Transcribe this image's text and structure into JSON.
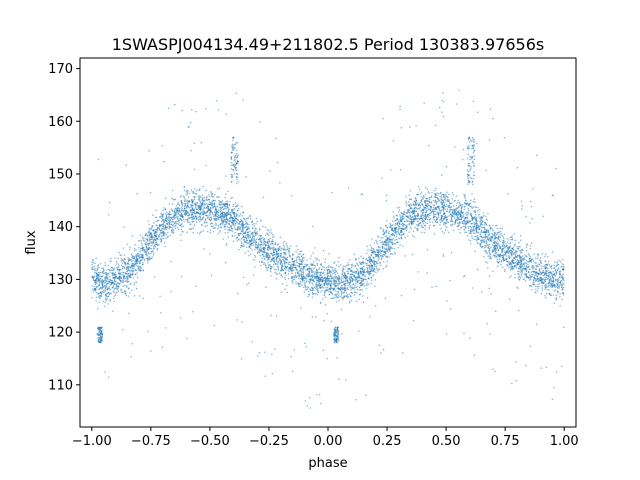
{
  "chart_data": {
    "type": "scatter",
    "title": "1SWASPJ004134.49+211802.5 Period 130383.97656s",
    "xlabel": "phase",
    "ylabel": "flux",
    "xlim": [
      -1.05,
      1.05
    ],
    "ylim": [
      102,
      172
    ],
    "x_ticks": [
      -1.0,
      -0.75,
      -0.5,
      -0.25,
      0.0,
      0.25,
      0.5,
      0.75,
      1.0
    ],
    "x_tick_labels": [
      "−1.00",
      "−0.75",
      "−0.50",
      "−0.25",
      "0.00",
      "0.25",
      "0.50",
      "0.75",
      "1.00"
    ],
    "y_ticks": [
      110,
      120,
      130,
      140,
      150,
      160,
      170
    ],
    "y_tick_labels": [
      "110",
      "120",
      "130",
      "140",
      "150",
      "160",
      "170"
    ],
    "grid": false,
    "point_color": "#1f77b4",
    "curve": {
      "x": [
        0.0,
        0.05,
        0.1,
        0.15,
        0.2,
        0.25,
        0.3,
        0.35,
        0.4,
        0.45,
        0.5,
        0.55,
        0.6,
        0.65,
        0.7,
        0.75,
        0.8,
        0.85,
        0.9,
        0.95,
        1.0
      ],
      "y": [
        130,
        129,
        130,
        131,
        134,
        137,
        140,
        142,
        143,
        143.5,
        143,
        142.5,
        141.5,
        139,
        137,
        135.5,
        133.5,
        132.5,
        131,
        130,
        130
      ],
      "spread": [
        4,
        4,
        4,
        4,
        4,
        4,
        4,
        4,
        4,
        4,
        4,
        4,
        4,
        4,
        4,
        4,
        4,
        4,
        4,
        4,
        4
      ]
    },
    "clusters": [
      {
        "x": [
          -0.975,
          -0.955
        ],
        "y": [
          118,
          121
        ]
      },
      {
        "x": [
          0.025,
          0.045
        ],
        "y": [
          118,
          121
        ]
      },
      {
        "x": [
          -0.41,
          -0.38
        ],
        "y": [
          148,
          157
        ]
      },
      {
        "x": [
          0.59,
          0.62
        ],
        "y": [
          148,
          157
        ]
      }
    ]
  }
}
